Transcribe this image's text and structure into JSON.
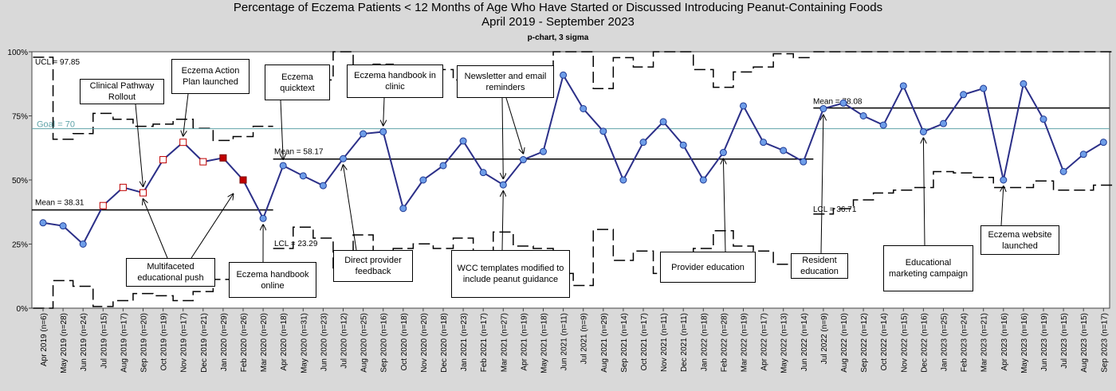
{
  "title": "Percentage of Eczema Patients < 12 Months of Age Who Have Started or Discussed Introducing Peanut-Containing Foods",
  "subtitle": "April 2019 - September 2023",
  "chart_subtitle": "p-chart, 3 sigma",
  "colors": {
    "line": "#2b2f88",
    "point": "#6e9de8",
    "point_edge": "#1f3a93",
    "special": "#c00000",
    "goal": "#5fa3a8",
    "background": "#d9d9d9"
  },
  "chart_data": {
    "type": "line",
    "ylim": [
      0,
      100
    ],
    "yticks": [
      "0%",
      "25%",
      "50%",
      "75%",
      "100%"
    ],
    "grid": false,
    "categories": [
      "Apr 2019 (n=6)",
      "May 2019 (n=28)",
      "Jun 2019 (n=24)",
      "Jul 2019 (n=15)",
      "Aug 2019 (n=17)",
      "Sep 2019 (n=20)",
      "Oct 2019 (n=19)",
      "Nov 2019 (n=17)",
      "Dec 2019 (n=21)",
      "Jan 2020 (n=29)",
      "Feb 2020 (n=26)",
      "Mar 2020 (n=20)",
      "Apr 2020 (n=18)",
      "May 2020 (n=31)",
      "Jun 2020 (n=23)",
      "Jul 2020 (n=12)",
      "Aug 2020 (n=25)",
      "Sep 2020 (n=16)",
      "Oct 2020 (n=18)",
      "Nov 2020 (n=20)",
      "Dec 2020 (n=18)",
      "Jan 2021 (n=23)",
      "Feb 2021 (n=17)",
      "Mar 2021 (n=27)",
      "Apr 2021 (n=19)",
      "May 2021 (n=18)",
      "Jun 2021 (n=11)",
      "Jul 2021 (n=9)",
      "Aug 2021 (n=29)",
      "Sep 2021 (n=14)",
      "Oct 2021 (n=17)",
      "Nov 2021 (n=11)",
      "Dec 2021 (n=11)",
      "Jan 2022 (n=18)",
      "Feb 2022 (n=28)",
      "Mar 2022 (n=19)",
      "Apr 2022 (n=17)",
      "May 2022 (n=13)",
      "Jun 2022 (n=14)",
      "Jul 2022 (n=9)",
      "Aug 2022 (n=10)",
      "Sep 2022 (n=12)",
      "Oct 2022 (n=14)",
      "Nov 2022 (n=15)",
      "Dec 2022 (n=16)",
      "Jan 2023 (n=25)",
      "Feb 2023 (n=24)",
      "Mar 2023 (n=21)",
      "Apr 2023 (n=16)",
      "May 2023 (n=16)",
      "Jun 2023 (n=19)",
      "Jul 2023 (n=15)",
      "Aug 2023 (n=15)",
      "Sep 2023 (n=17)"
    ],
    "values": [
      33.3,
      32.1,
      25.0,
      40.0,
      47.1,
      45.0,
      57.9,
      64.7,
      57.1,
      58.6,
      50.0,
      35.0,
      55.6,
      51.6,
      47.8,
      58.3,
      68.0,
      68.8,
      38.9,
      50.0,
      55.6,
      65.2,
      52.9,
      48.1,
      57.9,
      61.1,
      90.9,
      77.8,
      69.0,
      50.0,
      64.7,
      72.7,
      63.6,
      50.0,
      60.7,
      78.9,
      64.7,
      61.5,
      57.1,
      77.8,
      80.0,
      75.0,
      71.4,
      86.7,
      68.8,
      72.0,
      83.3,
      85.7,
      50.0,
      87.5,
      73.7,
      53.3,
      60.0,
      64.7
    ],
    "point_style": [
      "normal",
      "normal",
      "normal",
      "hollow-red",
      "hollow-red",
      "hollow-red",
      "hollow-red",
      "hollow-red",
      "hollow-red",
      "filled-red",
      "filled-red",
      "normal",
      "normal",
      "normal",
      "normal",
      "normal",
      "normal",
      "normal",
      "normal",
      "normal",
      "normal",
      "normal",
      "normal",
      "normal",
      "normal",
      "normal",
      "normal",
      "normal",
      "normal",
      "normal",
      "normal",
      "normal",
      "normal",
      "normal",
      "normal",
      "normal",
      "normal",
      "normal",
      "normal",
      "normal",
      "normal",
      "normal",
      "normal",
      "normal",
      "normal",
      "normal",
      "normal",
      "normal",
      "normal",
      "normal",
      "normal",
      "normal",
      "normal",
      "normal"
    ],
    "phases": [
      {
        "start": 0,
        "end": 11,
        "mean": 38.31
      },
      {
        "start": 12,
        "end": 38,
        "mean": 58.17
      },
      {
        "start": 39,
        "end": 53,
        "mean": 78.08
      }
    ],
    "goal": 70,
    "labels": {
      "ucl": "UCL = 97.85",
      "goal": "Goal = 70",
      "mean1": "Mean = 38.31",
      "mean2": "Mean = 58.17",
      "mean3": "Mean = 78.08",
      "lcl2": "LCL = 23.29",
      "lcl3": "LCL = 36.71"
    },
    "annotations": [
      {
        "text": "Clinical Pathway Rollout",
        "index": 5,
        "value": 45.0
      },
      {
        "text": "Eczema Action Plan launched",
        "index": 7,
        "value": 64.7
      },
      {
        "text": "Multifaceted educational push",
        "index": 5,
        "value": 45.0
      },
      {
        "text": "Multifaceted educational push",
        "index": 9.5,
        "value": 47
      },
      {
        "text": "Eczema handbook online",
        "index": 11,
        "value": 35.0
      },
      {
        "text": "Eczema quicktext",
        "index": 12,
        "value": 55.6
      },
      {
        "text": "Direct provider feedback",
        "index": 15,
        "value": 58.3
      },
      {
        "text": "Eczema handbook in clinic",
        "index": 17,
        "value": 68.8
      },
      {
        "text": "Newsletter and email reminders",
        "index": 23,
        "value": 48.1
      },
      {
        "text": "Newsletter and email reminders",
        "index": 24,
        "value": 57.9
      },
      {
        "text": "WCC templates modified to include peanut guidance",
        "index": 23,
        "value": 48.1
      },
      {
        "text": "Provider education",
        "index": 34,
        "value": 60.7
      },
      {
        "text": "Resident education",
        "index": 39,
        "value": 77.8
      },
      {
        "text": "Educational marketing campaign",
        "index": 44,
        "value": 68.8
      },
      {
        "text": "Eczema website launched",
        "index": 48,
        "value": 50.0
      }
    ]
  },
  "annotation_boxes": [
    {
      "text": "Clinical Pathway Rollout"
    },
    {
      "text": "Eczema Action Plan launched"
    },
    {
      "text": "Multifaceted educational push"
    },
    {
      "text": "Eczema handbook online"
    },
    {
      "text": "Eczema quicktext"
    },
    {
      "text": "Direct provider feedback"
    },
    {
      "text": "Eczema handbook in clinic"
    },
    {
      "text": "Newsletter and email reminders"
    },
    {
      "text": "WCC templates modified to include peanut guidance"
    },
    {
      "text": "Provider education"
    },
    {
      "text": "Resident education"
    },
    {
      "text": "Educational marketing campaign"
    },
    {
      "text": "Eczema website launched"
    }
  ]
}
